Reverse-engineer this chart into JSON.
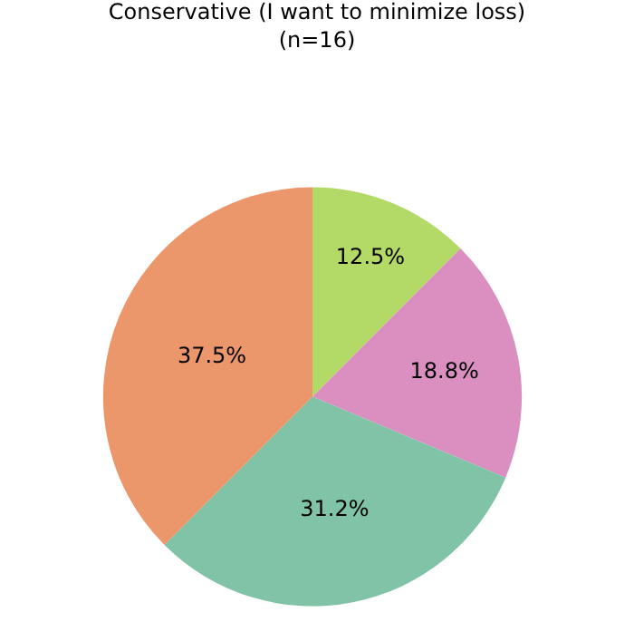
{
  "chart_data": {
    "type": "pie",
    "title": "Conservative (I want to minimize loss)",
    "subtitle": "(n=16)",
    "categories": [
      null,
      null,
      null,
      null
    ],
    "values": [
      12.5,
      18.8,
      31.2,
      37.5
    ],
    "value_labels": [
      "12.5%",
      "18.8%",
      "31.2%",
      "37.5%"
    ],
    "colors": [
      "#b3d966",
      "#da8fc0",
      "#80c3a6",
      "#ec966c"
    ],
    "legend": false
  }
}
